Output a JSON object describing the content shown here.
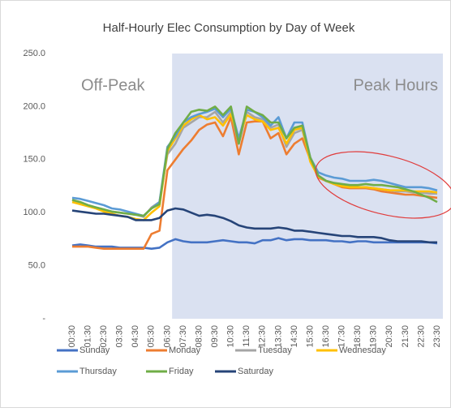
{
  "chart_data": {
    "type": "line",
    "title": "Half-Hourly Elec Consumption by Day of Week",
    "annotations": [
      "Off-Peak",
      "Peak Hours"
    ],
    "categories": [
      "00:30",
      null,
      "01:30",
      null,
      "02:30",
      null,
      "03:30",
      null,
      "04:30",
      null,
      "05:30",
      null,
      "06:30",
      null,
      "07:30",
      null,
      "08:30",
      null,
      "09:30",
      null,
      "10:30",
      null,
      "11:30",
      null,
      "12:30",
      null,
      "13:30",
      null,
      "14:30",
      null,
      "15:30",
      null,
      "16:30",
      null,
      "17:30",
      null,
      "18:30",
      null,
      "19:30",
      null,
      "20:30",
      null,
      "21:30",
      null,
      "22:30",
      null,
      "23:30"
    ],
    "ylim": [
      0,
      250
    ],
    "yticks": [
      {
        "value": 0,
        "label": "-"
      },
      {
        "value": 50,
        "label": "50.0"
      },
      {
        "value": 100,
        "label": "100.0"
      },
      {
        "value": 150,
        "label": "150.0"
      },
      {
        "value": 200,
        "label": "200.0"
      },
      {
        "value": 250,
        "label": "250.0"
      }
    ],
    "grid": false,
    "legend": "bottom",
    "series": [
      {
        "name": "Sunday",
        "color": "#4472c4",
        "values": [
          69,
          70,
          69,
          68,
          68,
          68,
          67,
          67,
          67,
          67,
          66,
          67,
          72,
          75,
          73,
          72,
          72,
          72,
          73,
          74,
          73,
          72,
          72,
          71,
          74,
          74,
          76,
          74,
          75,
          75,
          74,
          74,
          74,
          73,
          73,
          72,
          73,
          73,
          72,
          72,
          72,
          72,
          72,
          72,
          72,
          72,
          71
        ]
      },
      {
        "name": "Monday",
        "color": "#ed7d31",
        "values": [
          68,
          68,
          68,
          67,
          66,
          66,
          66,
          66,
          66,
          66,
          80,
          83,
          140,
          150,
          160,
          168,
          178,
          183,
          185,
          172,
          190,
          155,
          185,
          186,
          186,
          170,
          175,
          155,
          165,
          170,
          150,
          133,
          130,
          127,
          124,
          123,
          123,
          123,
          122,
          120,
          119,
          118,
          117,
          117,
          116,
          115,
          114
        ]
      },
      {
        "name": "Tuesday",
        "color": "#a5a5a5",
        "values": [
          112,
          110,
          107,
          105,
          103,
          101,
          100,
          99,
          98,
          96,
          105,
          110,
          155,
          165,
          180,
          185,
          190,
          190,
          195,
          185,
          195,
          165,
          195,
          190,
          188,
          180,
          183,
          162,
          175,
          178,
          150,
          135,
          130,
          128,
          126,
          125,
          124,
          124,
          123,
          122,
          121,
          120,
          120,
          119,
          119,
          118,
          118
        ]
      },
      {
        "name": "Wednesday",
        "color": "#ffc000",
        "values": [
          110,
          108,
          106,
          104,
          101,
          99,
          97,
          96,
          94,
          93,
          100,
          106,
          158,
          170,
          182,
          188,
          192,
          188,
          190,
          182,
          193,
          170,
          192,
          188,
          186,
          178,
          180,
          165,
          178,
          180,
          148,
          134,
          130,
          127,
          125,
          124,
          124,
          124,
          123,
          122,
          121,
          121,
          121,
          120,
          120,
          120,
          119
        ]
      },
      {
        "name": "Thursday",
        "color": "#5b9bd5",
        "values": [
          114,
          113,
          111,
          109,
          107,
          104,
          103,
          101,
          99,
          97,
          104,
          110,
          162,
          172,
          185,
          190,
          193,
          195,
          198,
          190,
          198,
          170,
          197,
          195,
          190,
          182,
          190,
          170,
          185,
          185,
          152,
          138,
          135,
          133,
          132,
          130,
          130,
          130,
          131,
          130,
          128,
          126,
          124,
          124,
          124,
          123,
          121
        ]
      },
      {
        "name": "Friday",
        "color": "#70ad47",
        "values": [
          112,
          110,
          107,
          105,
          103,
          101,
          100,
          99,
          98,
          97,
          104,
          108,
          160,
          175,
          185,
          195,
          197,
          196,
          200,
          192,
          200,
          165,
          200,
          195,
          192,
          185,
          185,
          170,
          180,
          182,
          152,
          135,
          130,
          128,
          127,
          126,
          126,
          127,
          126,
          126,
          125,
          124,
          122,
          120,
          117,
          114,
          110
        ]
      },
      {
        "name": "Saturday",
        "color": "#264478",
        "values": [
          102,
          101,
          100,
          99,
          99,
          98,
          97,
          96,
          93,
          93,
          93,
          95,
          102,
          104,
          103,
          100,
          97,
          98,
          97,
          95,
          92,
          88,
          86,
          85,
          85,
          85,
          86,
          85,
          83,
          83,
          82,
          81,
          80,
          79,
          78,
          78,
          77,
          77,
          77,
          76,
          74,
          73,
          73,
          73,
          73,
          72,
          72
        ]
      }
    ]
  }
}
